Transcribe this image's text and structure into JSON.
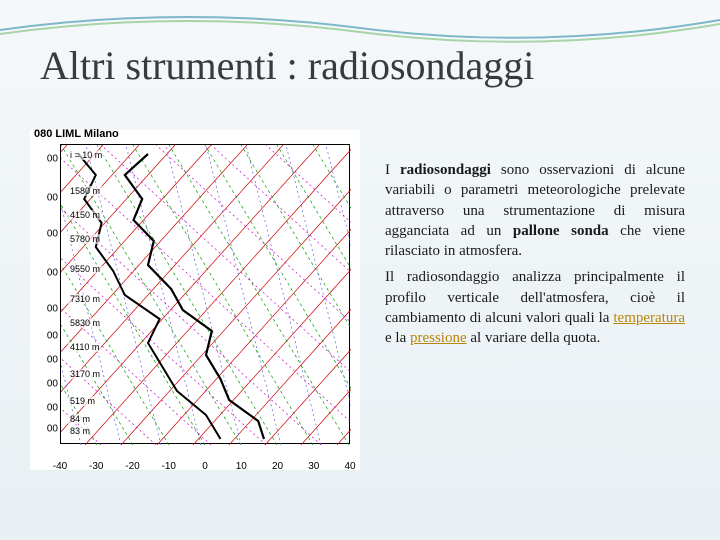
{
  "title": "Altri strumenti : radiosondaggi",
  "chart": {
    "station_label": "080 LIML Milano",
    "plot_bg": "#ffffff",
    "border_color": "#000000",
    "xaxis": {
      "min": -40,
      "max": 40,
      "ticks": [
        -40,
        -30,
        -20,
        -10,
        0,
        10,
        20,
        30,
        40
      ]
    },
    "yaxis": {
      "ticks_label": "00",
      "tick_rel_positions": [
        0.05,
        0.18,
        0.3,
        0.43,
        0.55,
        0.64,
        0.72,
        0.8,
        0.88,
        0.95
      ]
    },
    "altitude_labels": [
      {
        "text": "i = 10 m",
        "y": 0.02
      },
      {
        "text": "1580 m",
        "y": 0.14
      },
      {
        "text": "4150 m",
        "y": 0.22
      },
      {
        "text": "5780 m",
        "y": 0.3
      },
      {
        "text": "9550 m",
        "y": 0.4
      },
      {
        "text": "7310 m",
        "y": 0.5
      },
      {
        "text": "5830 m",
        "y": 0.58
      },
      {
        "text": "4110 m",
        "y": 0.66
      },
      {
        "text": "3170 m",
        "y": 0.75
      },
      {
        "text": "519 m",
        "y": 0.84
      },
      {
        "text": "84 m",
        "y": 0.9
      },
      {
        "text": "83 m",
        "y": 0.94
      }
    ],
    "diag_green": {
      "color": "#00a000",
      "width": 0.7,
      "spacing": 36,
      "dash": "3,3"
    },
    "diag_red": {
      "color": "#d00000",
      "width": 0.7,
      "spacing": 36
    },
    "diag_blue": {
      "color": "#6060e0",
      "width": 0.7,
      "spacing": 40,
      "dash": "2,3"
    },
    "diag_magenta": {
      "color": "#d000d0",
      "width": 0.7,
      "spacing": 55,
      "dash": "2,3"
    },
    "traces": {
      "temp": {
        "color": "#000000",
        "width": 2.2,
        "points": [
          [
            0.7,
            0.98
          ],
          [
            0.68,
            0.92
          ],
          [
            0.58,
            0.85
          ],
          [
            0.55,
            0.78
          ],
          [
            0.5,
            0.7
          ],
          [
            0.52,
            0.62
          ],
          [
            0.42,
            0.55
          ],
          [
            0.38,
            0.48
          ],
          [
            0.3,
            0.4
          ],
          [
            0.32,
            0.32
          ],
          [
            0.25,
            0.25
          ],
          [
            0.28,
            0.18
          ],
          [
            0.22,
            0.1
          ],
          [
            0.3,
            0.03
          ]
        ]
      },
      "dew": {
        "color": "#000000",
        "width": 2.0,
        "points": [
          [
            0.55,
            0.98
          ],
          [
            0.5,
            0.9
          ],
          [
            0.4,
            0.82
          ],
          [
            0.35,
            0.74
          ],
          [
            0.3,
            0.66
          ],
          [
            0.34,
            0.58
          ],
          [
            0.22,
            0.5
          ],
          [
            0.18,
            0.42
          ],
          [
            0.12,
            0.34
          ],
          [
            0.14,
            0.26
          ],
          [
            0.08,
            0.18
          ],
          [
            0.12,
            0.1
          ],
          [
            0.06,
            0.03
          ]
        ]
      }
    }
  },
  "paragraphs": {
    "p1_a": "I ",
    "p1_kw1": "radiosondaggi ",
    "p1_b": "sono osservazioni di alcune variabili o parametri meteorologiche prelevate attraverso una strumentazione di misura agganciata ad un ",
    "p1_kw2": "pallone sonda ",
    "p1_c": "che viene rilasciato in atmosfera.",
    "p2_a": "Il radiosondaggio analizza principalmente il profilo verticale dell'atmosfera, cioè il cambiamento di alcuni valori quali la ",
    "p2_link1": "temperatura",
    "p2_b": " e la ",
    "p2_link2": "pressione",
    "p2_c": " al variare della quota."
  }
}
